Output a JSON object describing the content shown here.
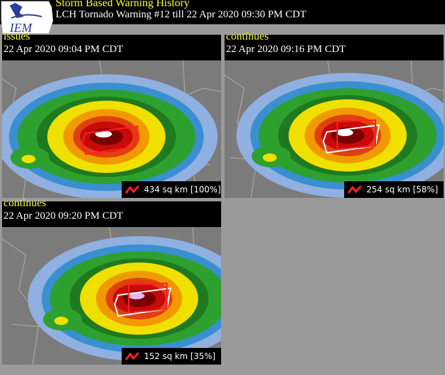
{
  "header": {
    "logo": "IEM",
    "title": "Storm Based Warning History",
    "subtitle": "LCH Tornado Warning #12 till  22 Apr 2020 09:30 PM CDT"
  },
  "panels": [
    {
      "status": "issues",
      "time": "22 Apr 2020 09:04 PM CDT",
      "area": "434 sq km [100%]"
    },
    {
      "status": "continues",
      "time": "22 Apr 2020 09:16 PM CDT",
      "area": "254 sq km [58%]"
    },
    {
      "status": "continues",
      "time": "22 Apr 2020 09:20 PM CDT",
      "area": "152 sq km [35%]"
    }
  ]
}
